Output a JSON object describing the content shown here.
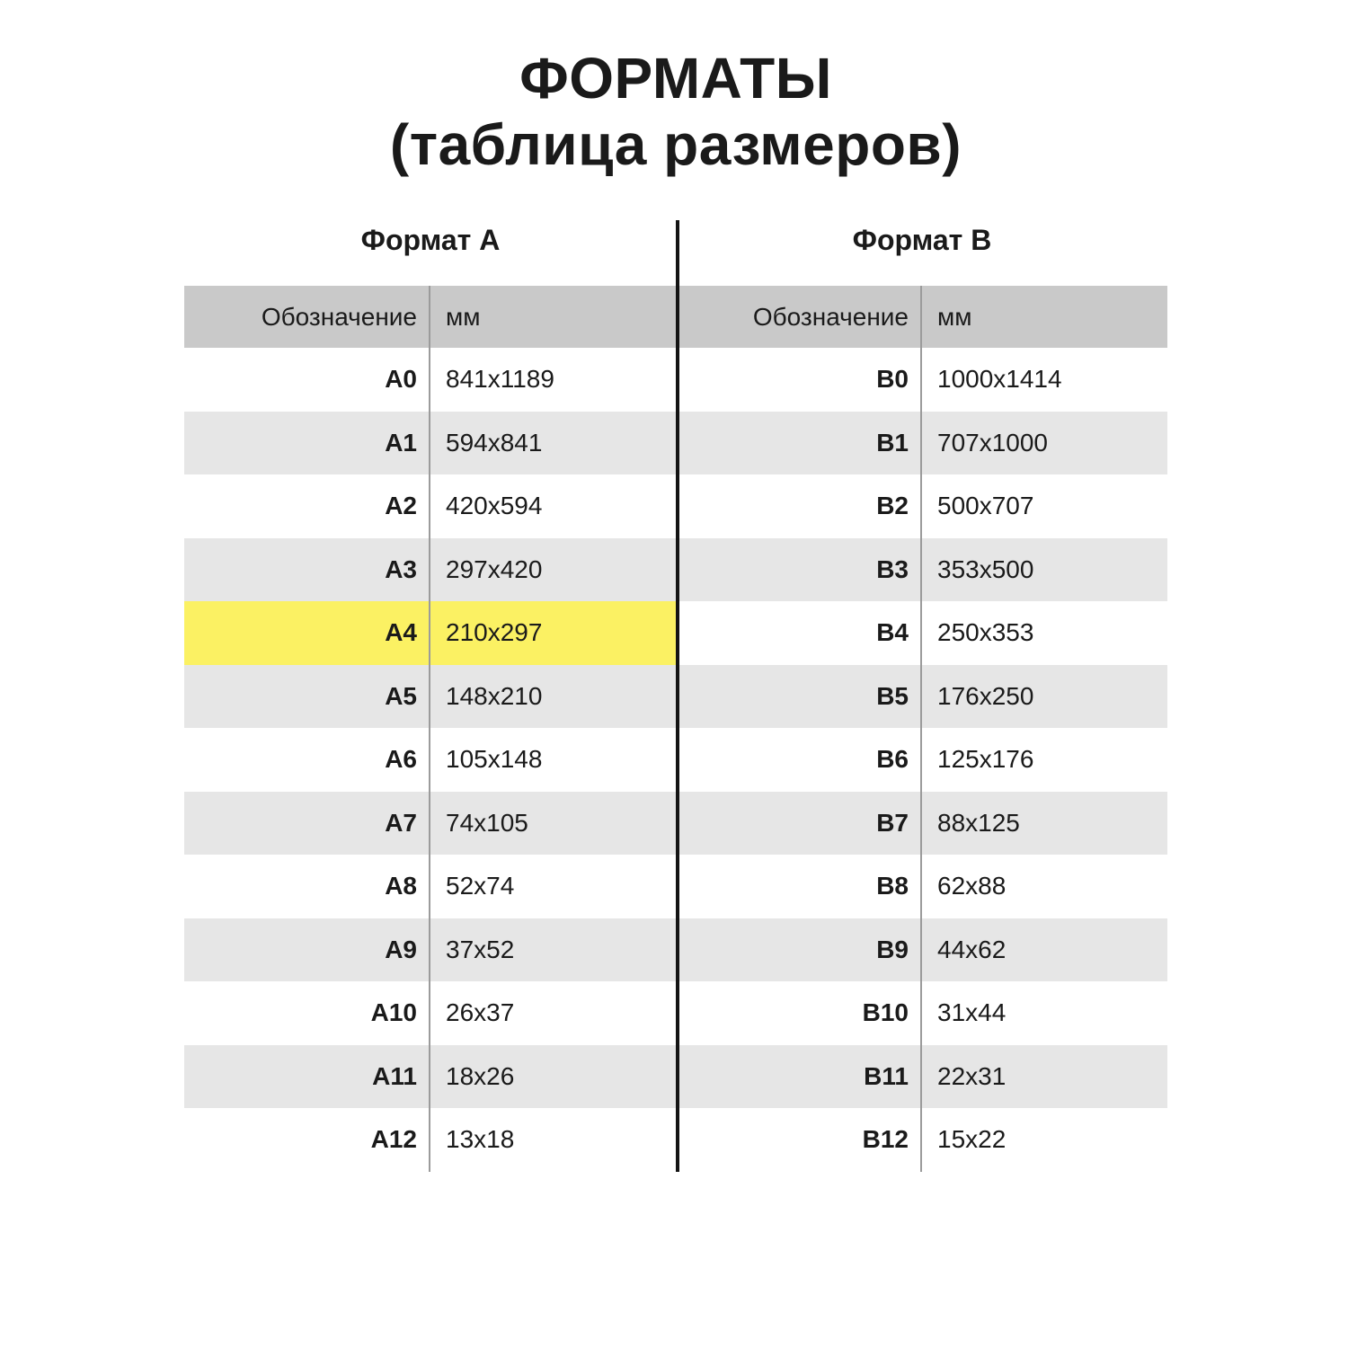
{
  "title": {
    "line1": "ФОРМАТЫ",
    "line2": "(таблица размеров)"
  },
  "format_a": {
    "title": "Формат А",
    "col_designation": "Обозначение",
    "col_mm": "мм"
  },
  "format_b": {
    "title": "Формат B",
    "col_designation": "Обозначение",
    "col_mm": "мм"
  },
  "rows": [
    {
      "a_label": "A0",
      "a_mm": "841x1189",
      "b_label": "B0",
      "b_mm": "1000x1414"
    },
    {
      "a_label": "A1",
      "a_mm": "594x841",
      "b_label": "B1",
      "b_mm": "707x1000"
    },
    {
      "a_label": "A2",
      "a_mm": "420x594",
      "b_label": "B2",
      "b_mm": "500x707"
    },
    {
      "a_label": "A3",
      "a_mm": "297x420",
      "b_label": "B3",
      "b_mm": "353x500"
    },
    {
      "a_label": "A4",
      "a_mm": "210x297",
      "b_label": "B4",
      "b_mm": "250x353",
      "highlight_a": true
    },
    {
      "a_label": "A5",
      "a_mm": "148x210",
      "b_label": "B5",
      "b_mm": "176x250"
    },
    {
      "a_label": "A6",
      "a_mm": "105x148",
      "b_label": "B6",
      "b_mm": "125x176"
    },
    {
      "a_label": "A7",
      "a_mm": "74x105",
      "b_label": "B7",
      "b_mm": "88x125"
    },
    {
      "a_label": "A8",
      "a_mm": "52x74",
      "b_label": "B8",
      "b_mm": "62x88"
    },
    {
      "a_label": "A9",
      "a_mm": "37x52",
      "b_label": "B9",
      "b_mm": "44x62"
    },
    {
      "a_label": "A10",
      "a_mm": "26x37",
      "b_label": "B10",
      "b_mm": "31x44"
    },
    {
      "a_label": "A11",
      "a_mm": "18x26",
      "b_label": "B11",
      "b_mm": "22x31"
    },
    {
      "a_label": "A12",
      "a_mm": "13x18",
      "b_label": "B12",
      "b_mm": "15x22"
    }
  ],
  "highlighted_format": "A4",
  "colors": {
    "header_row_bg": "#c9c9c9",
    "stripe_bg": "#e6e6e6",
    "highlight_bg": "#fbf163",
    "text": "#1a1a1a",
    "thin_divider": "#9b9b9b",
    "center_divider": "#141414"
  }
}
